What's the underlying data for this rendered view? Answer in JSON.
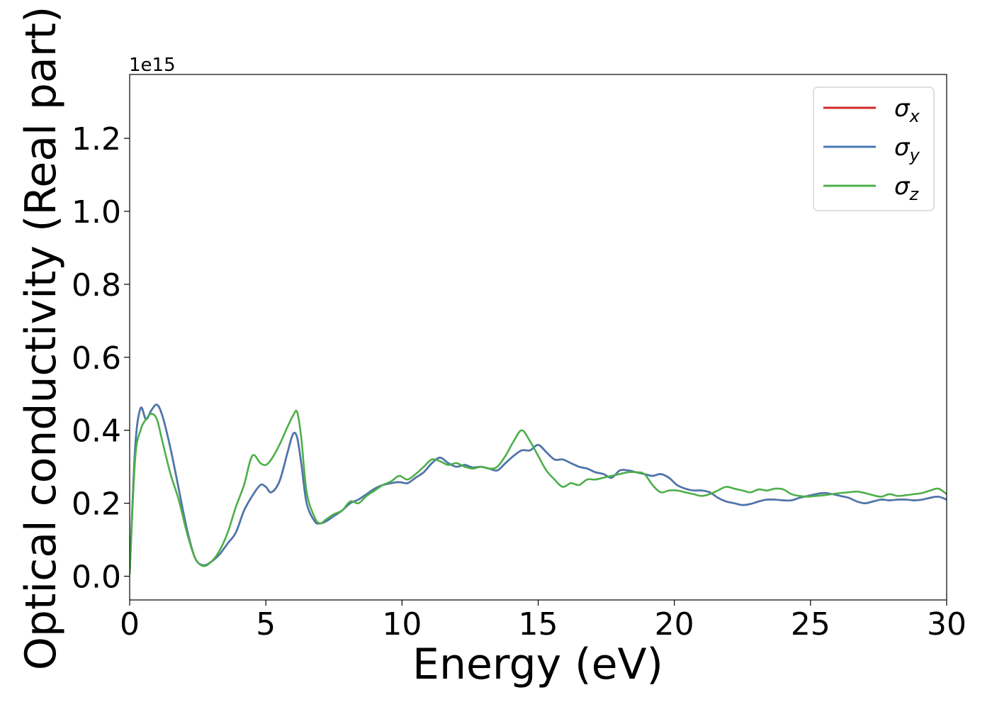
{
  "chart_data": {
    "type": "line",
    "title": "",
    "xlabel": "Energy (eV)",
    "ylabel": "Optical conductivity (Real part)",
    "offset_text": "1e15",
    "xlim": [
      0,
      30
    ],
    "ylim": [
      -0.065,
      1.375
    ],
    "x_ticks": [
      0,
      5,
      10,
      15,
      20,
      25,
      30
    ],
    "x_tick_labels": [
      "0",
      "5",
      "10",
      "15",
      "20",
      "25",
      "30"
    ],
    "y_ticks": [
      0.0,
      0.2,
      0.4,
      0.6,
      0.8,
      1.0,
      1.2
    ],
    "y_tick_labels": [
      "0.0",
      "0.2",
      "0.4",
      "0.6",
      "0.8",
      "1.0",
      "1.2"
    ],
    "grid": false,
    "legend_position": "top-right",
    "series": [
      {
        "name": "σx",
        "legend_symbol": "σ",
        "legend_subscript": "x",
        "color": "#d62728",
        "x": [
          0,
          0.2,
          0.4,
          0.6,
          0.8,
          1.0,
          1.2,
          1.5,
          1.8,
          2.1,
          2.4,
          2.7,
          3.0,
          3.3,
          3.6,
          3.9,
          4.2,
          4.5,
          4.8,
          5.0,
          5.2,
          5.5,
          5.8,
          6.0,
          6.15,
          6.3,
          6.5,
          6.8,
          7.0,
          7.2,
          7.5,
          7.8,
          8.1,
          8.4,
          8.7,
          9.0,
          9.3,
          9.6,
          9.9,
          10.2,
          10.5,
          10.8,
          11.1,
          11.4,
          11.7,
          12.0,
          12.3,
          12.6,
          12.9,
          13.2,
          13.5,
          13.8,
          14.1,
          14.4,
          14.7,
          15.0,
          15.3,
          15.6,
          15.9,
          16.2,
          16.5,
          16.8,
          17.1,
          17.4,
          17.7,
          18.0,
          18.3,
          18.6,
          18.9,
          19.2,
          19.5,
          19.8,
          20.1,
          20.4,
          20.7,
          21.0,
          21.3,
          21.6,
          21.9,
          22.2,
          22.5,
          22.8,
          23.1,
          23.4,
          23.7,
          24.0,
          24.3,
          24.6,
          24.9,
          25.2,
          25.5,
          25.8,
          26.1,
          26.4,
          26.7,
          27.0,
          27.3,
          27.6,
          27.9,
          28.2,
          28.5,
          28.8,
          29.1,
          29.4,
          29.7,
          30.0
        ],
        "y": [
          0.005,
          0.35,
          0.46,
          0.43,
          0.455,
          0.47,
          0.44,
          0.35,
          0.24,
          0.13,
          0.05,
          0.03,
          0.04,
          0.06,
          0.09,
          0.12,
          0.18,
          0.22,
          0.25,
          0.245,
          0.23,
          0.26,
          0.34,
          0.39,
          0.38,
          0.31,
          0.2,
          0.15,
          0.145,
          0.15,
          0.165,
          0.18,
          0.2,
          0.21,
          0.225,
          0.24,
          0.25,
          0.255,
          0.258,
          0.255,
          0.27,
          0.285,
          0.31,
          0.325,
          0.31,
          0.3,
          0.305,
          0.298,
          0.3,
          0.295,
          0.29,
          0.31,
          0.33,
          0.345,
          0.345,
          0.36,
          0.34,
          0.32,
          0.32,
          0.31,
          0.3,
          0.295,
          0.285,
          0.28,
          0.27,
          0.29,
          0.29,
          0.285,
          0.28,
          0.275,
          0.28,
          0.27,
          0.25,
          0.24,
          0.235,
          0.235,
          0.23,
          0.215,
          0.205,
          0.2,
          0.195,
          0.198,
          0.205,
          0.21,
          0.21,
          0.208,
          0.208,
          0.215,
          0.22,
          0.225,
          0.228,
          0.225,
          0.22,
          0.215,
          0.205,
          0.2,
          0.205,
          0.21,
          0.208,
          0.21,
          0.21,
          0.208,
          0.21,
          0.215,
          0.218,
          0.21
        ]
      },
      {
        "name": "σy",
        "legend_symbol": "σ",
        "legend_subscript": "y",
        "color": "#4878b0",
        "x": [
          0,
          0.2,
          0.4,
          0.6,
          0.8,
          1.0,
          1.2,
          1.5,
          1.8,
          2.1,
          2.4,
          2.7,
          3.0,
          3.3,
          3.6,
          3.9,
          4.2,
          4.5,
          4.8,
          5.0,
          5.2,
          5.5,
          5.8,
          6.0,
          6.15,
          6.3,
          6.5,
          6.8,
          7.0,
          7.2,
          7.5,
          7.8,
          8.1,
          8.4,
          8.7,
          9.0,
          9.3,
          9.6,
          9.9,
          10.2,
          10.5,
          10.8,
          11.1,
          11.4,
          11.7,
          12.0,
          12.3,
          12.6,
          12.9,
          13.2,
          13.5,
          13.8,
          14.1,
          14.4,
          14.7,
          15.0,
          15.3,
          15.6,
          15.9,
          16.2,
          16.5,
          16.8,
          17.1,
          17.4,
          17.7,
          18.0,
          18.3,
          18.6,
          18.9,
          19.2,
          19.5,
          19.8,
          20.1,
          20.4,
          20.7,
          21.0,
          21.3,
          21.6,
          21.9,
          22.2,
          22.5,
          22.8,
          23.1,
          23.4,
          23.7,
          24.0,
          24.3,
          24.6,
          24.9,
          25.2,
          25.5,
          25.8,
          26.1,
          26.4,
          26.7,
          27.0,
          27.3,
          27.6,
          27.9,
          28.2,
          28.5,
          28.8,
          29.1,
          29.4,
          29.7,
          30.0
        ],
        "y": [
          0.005,
          0.35,
          0.46,
          0.43,
          0.455,
          0.47,
          0.44,
          0.35,
          0.24,
          0.13,
          0.05,
          0.03,
          0.04,
          0.06,
          0.09,
          0.12,
          0.18,
          0.22,
          0.25,
          0.245,
          0.23,
          0.26,
          0.34,
          0.39,
          0.38,
          0.31,
          0.2,
          0.15,
          0.145,
          0.15,
          0.165,
          0.18,
          0.2,
          0.21,
          0.225,
          0.24,
          0.25,
          0.255,
          0.258,
          0.255,
          0.27,
          0.285,
          0.31,
          0.325,
          0.31,
          0.3,
          0.305,
          0.298,
          0.3,
          0.295,
          0.29,
          0.31,
          0.33,
          0.345,
          0.345,
          0.36,
          0.34,
          0.32,
          0.32,
          0.31,
          0.3,
          0.295,
          0.285,
          0.28,
          0.27,
          0.29,
          0.29,
          0.285,
          0.28,
          0.275,
          0.28,
          0.27,
          0.25,
          0.24,
          0.235,
          0.235,
          0.23,
          0.215,
          0.205,
          0.2,
          0.195,
          0.198,
          0.205,
          0.21,
          0.21,
          0.208,
          0.208,
          0.215,
          0.22,
          0.225,
          0.228,
          0.225,
          0.22,
          0.215,
          0.205,
          0.2,
          0.205,
          0.21,
          0.208,
          0.21,
          0.21,
          0.208,
          0.21,
          0.215,
          0.218,
          0.21
        ]
      },
      {
        "name": "σz",
        "legend_symbol": "σ",
        "legend_subscript": "z",
        "color": "#4daf4a",
        "x": [
          0,
          0.2,
          0.4,
          0.6,
          0.8,
          1.0,
          1.2,
          1.5,
          1.8,
          2.1,
          2.4,
          2.7,
          3.0,
          3.3,
          3.6,
          3.9,
          4.2,
          4.5,
          4.8,
          5.0,
          5.2,
          5.5,
          5.8,
          6.0,
          6.15,
          6.3,
          6.5,
          6.8,
          7.0,
          7.2,
          7.5,
          7.8,
          8.1,
          8.4,
          8.7,
          9.0,
          9.3,
          9.6,
          9.9,
          10.2,
          10.5,
          10.8,
          11.1,
          11.4,
          11.7,
          12.0,
          12.3,
          12.6,
          12.9,
          13.2,
          13.5,
          13.8,
          14.1,
          14.4,
          14.7,
          15.0,
          15.3,
          15.6,
          15.9,
          16.2,
          16.5,
          16.8,
          17.1,
          17.4,
          17.7,
          18.0,
          18.3,
          18.6,
          18.9,
          19.2,
          19.5,
          19.8,
          20.1,
          20.4,
          20.7,
          21.0,
          21.3,
          21.6,
          21.9,
          22.2,
          22.5,
          22.8,
          23.1,
          23.4,
          23.7,
          24.0,
          24.3,
          24.6,
          24.9,
          25.2,
          25.5,
          25.8,
          26.1,
          26.4,
          26.7,
          27.0,
          27.3,
          27.6,
          27.9,
          28.2,
          28.5,
          28.8,
          29.1,
          29.4,
          29.7,
          30.0
        ],
        "y": [
          0.005,
          0.32,
          0.4,
          0.43,
          0.445,
          0.43,
          0.37,
          0.28,
          0.21,
          0.12,
          0.05,
          0.028,
          0.04,
          0.07,
          0.12,
          0.19,
          0.25,
          0.33,
          0.31,
          0.305,
          0.32,
          0.36,
          0.41,
          0.44,
          0.45,
          0.38,
          0.23,
          0.16,
          0.145,
          0.155,
          0.17,
          0.18,
          0.205,
          0.2,
          0.22,
          0.235,
          0.25,
          0.26,
          0.275,
          0.265,
          0.28,
          0.3,
          0.32,
          0.315,
          0.305,
          0.31,
          0.3,
          0.295,
          0.3,
          0.295,
          0.3,
          0.33,
          0.37,
          0.4,
          0.37,
          0.33,
          0.29,
          0.265,
          0.245,
          0.255,
          0.25,
          0.265,
          0.265,
          0.27,
          0.275,
          0.28,
          0.285,
          0.285,
          0.28,
          0.25,
          0.23,
          0.235,
          0.235,
          0.23,
          0.225,
          0.22,
          0.225,
          0.235,
          0.245,
          0.24,
          0.235,
          0.23,
          0.238,
          0.235,
          0.24,
          0.238,
          0.225,
          0.22,
          0.218,
          0.22,
          0.222,
          0.225,
          0.228,
          0.23,
          0.232,
          0.228,
          0.222,
          0.218,
          0.225,
          0.22,
          0.222,
          0.225,
          0.228,
          0.235,
          0.24,
          0.225
        ]
      }
    ]
  }
}
